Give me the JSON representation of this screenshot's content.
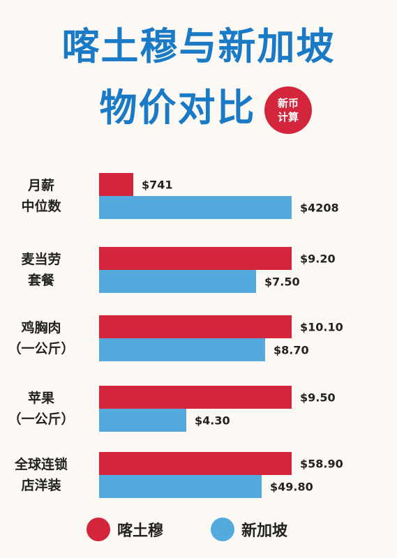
{
  "title": {
    "line1": "喀土穆与新加坡",
    "line2": "物价对比",
    "badge_line1": "新币",
    "badge_line2": "计算"
  },
  "colors": {
    "khartoum": "#d3253c",
    "singapore": "#54a9dd",
    "title": "#1a7ac6"
  },
  "chart_data": {
    "type": "bar",
    "orientation": "horizontal",
    "categories": [
      [
        "月薪",
        "中位数"
      ],
      [
        "麦当劳",
        "套餐"
      ],
      [
        "鸡胸肉",
        "（一公斤）"
      ],
      [
        "苹果",
        "（一公斤）"
      ],
      [
        "全球连锁",
        "店洋装"
      ]
    ],
    "series": [
      {
        "name": "喀土穆",
        "color": "#d3253c",
        "values": [
          741,
          9.2,
          10.1,
          9.5,
          58.9
        ],
        "labels": [
          "$741",
          "$9.20",
          "$10.10",
          "$9.50",
          "$58.90"
        ]
      },
      {
        "name": "新加坡",
        "color": "#54a9dd",
        "values": [
          4208,
          7.5,
          8.7,
          4.3,
          49.8
        ],
        "labels": [
          "$4208",
          "$7.50",
          "$8.70",
          "$4.30",
          "$49.80"
        ]
      }
    ],
    "scale_note": "each category scaled independently",
    "legend_position": "bottom"
  }
}
